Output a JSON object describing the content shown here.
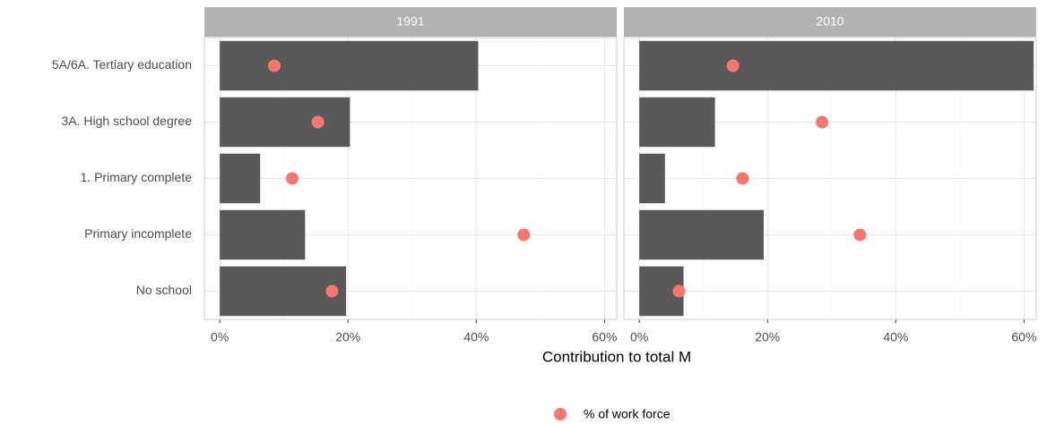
{
  "chart_data": {
    "type": "bar",
    "orientation": "horizontal",
    "xlabel": "Contribution to total M",
    "categories": [
      "5A/6A. Tertiary education",
      "3A. High school degree",
      "1. Primary complete",
      "Primary incomplete",
      "No school"
    ],
    "xlim": [
      -2.4,
      61.9
    ],
    "xticks": [
      {
        "value": 0,
        "label": "0%"
      },
      {
        "value": 20,
        "label": "20%"
      },
      {
        "value": 40,
        "label": "40%"
      },
      {
        "value": 60,
        "label": "60%"
      }
    ],
    "grid": true,
    "bar_color": "#595959",
    "legend": "bottom",
    "facets": [
      {
        "title": "1991",
        "values": [
          40.3,
          20.3,
          6.3,
          13.3,
          19.7
        ],
        "series": [
          {
            "name": "% of work force",
            "type": "scatter",
            "color": "#f8766d",
            "values": [
              8.5,
              15.3,
              11.3,
              47.4,
              17.5
            ]
          }
        ]
      },
      {
        "title": "2010",
        "values": [
          61.5,
          11.8,
          4.0,
          19.4,
          6.9
        ],
        "series": [
          {
            "name": "% of work force",
            "type": "scatter",
            "color": "#f8766d",
            "values": [
              14.6,
              28.5,
              16.1,
              34.4,
              6.2
            ]
          }
        ]
      }
    ]
  }
}
